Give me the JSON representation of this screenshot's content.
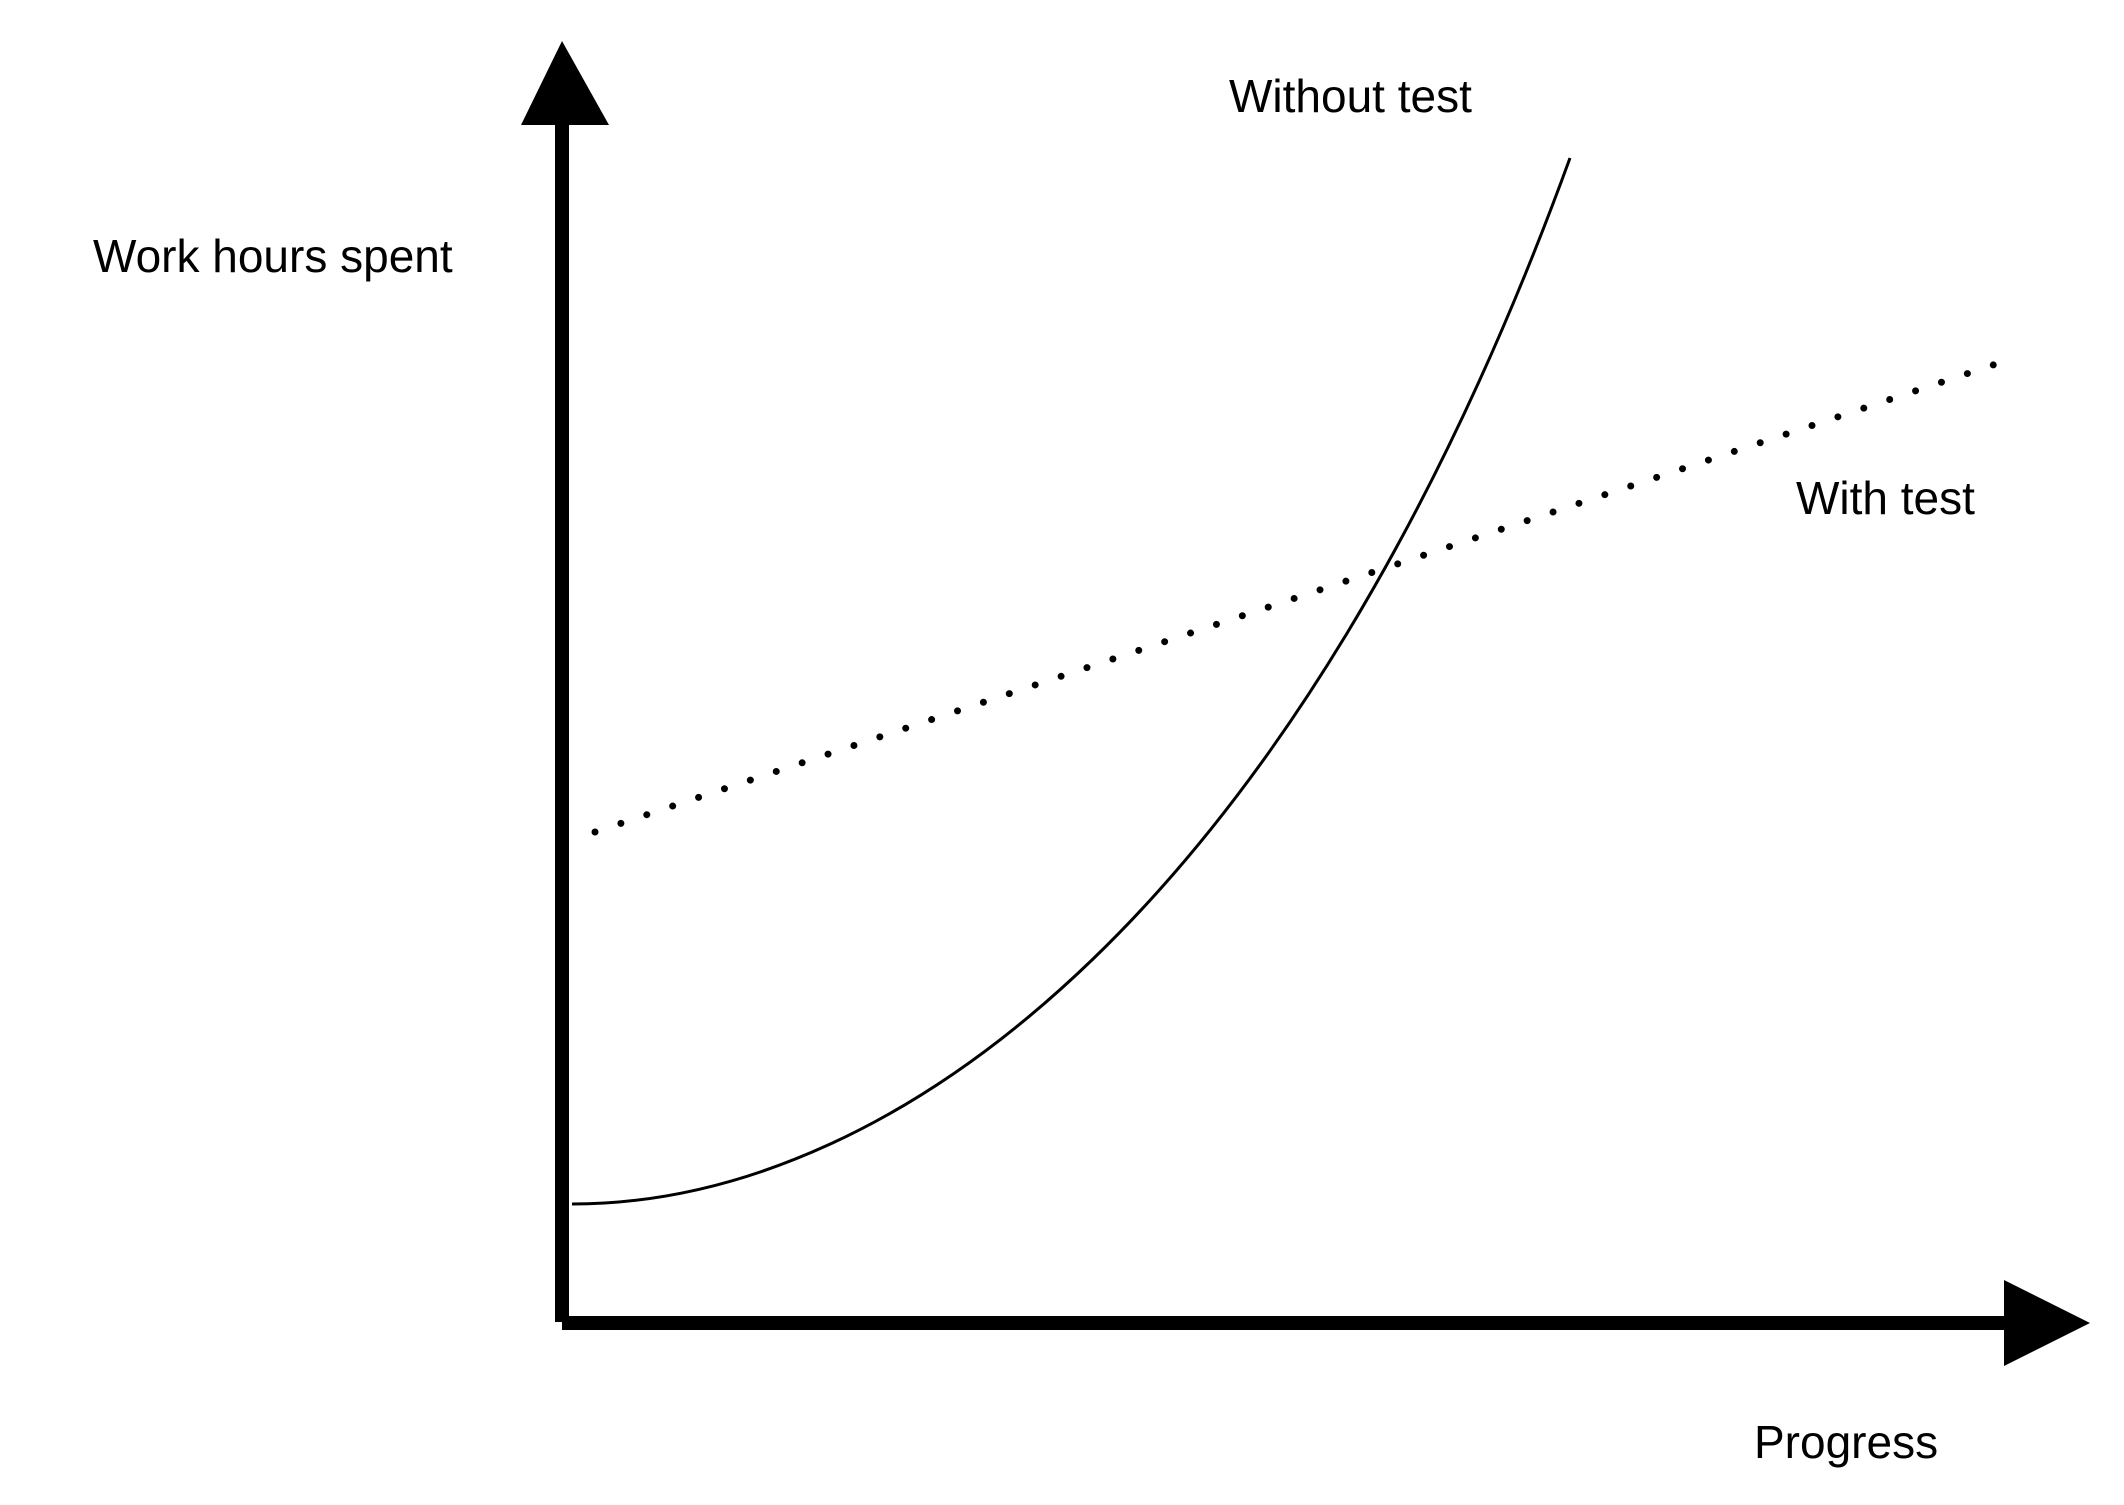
{
  "axes": {
    "y_label": "Work hours spent",
    "x_label": "Progress"
  },
  "curves": [
    {
      "label": "Without test"
    },
    {
      "label": "With test"
    }
  ]
}
